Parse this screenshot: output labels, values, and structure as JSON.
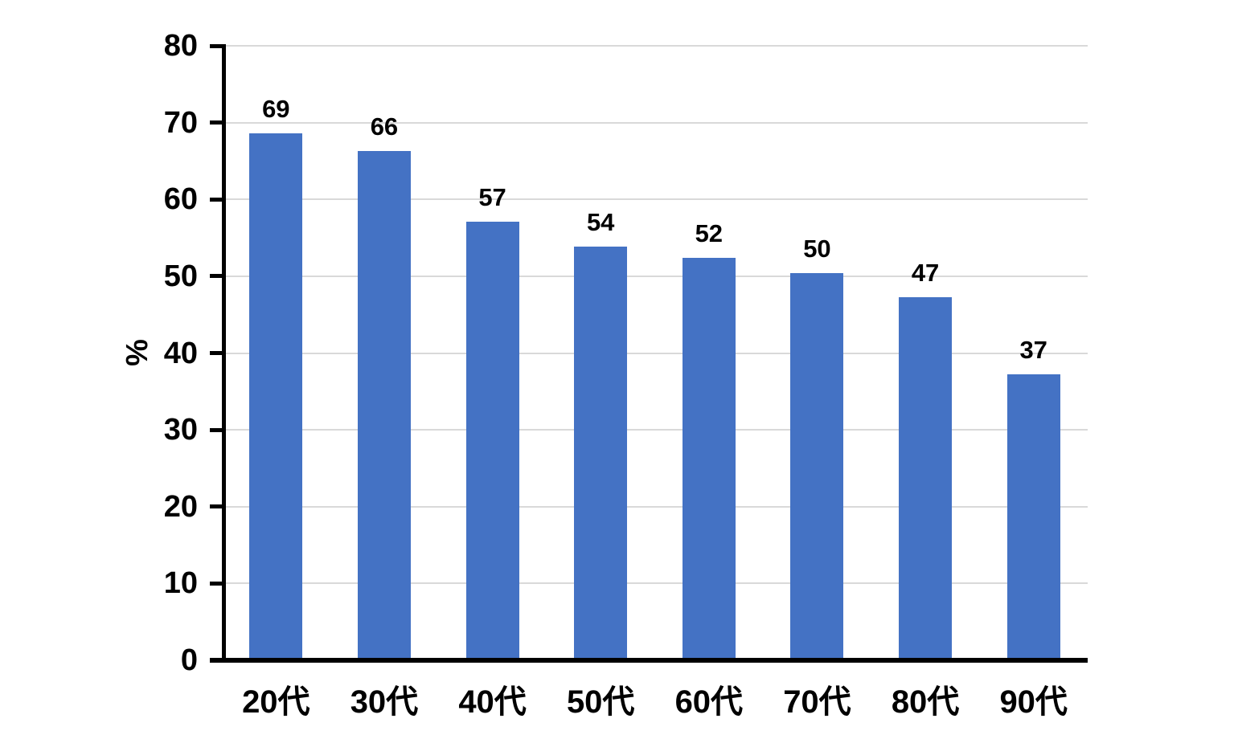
{
  "chart_data": {
    "type": "bar",
    "title": "",
    "xlabel": "",
    "ylabel": "%",
    "categories": [
      "20代",
      "30代",
      "40代",
      "50代",
      "60代",
      "70代",
      "80代",
      "90代"
    ],
    "values": [
      69,
      66,
      57,
      54,
      52,
      50,
      47,
      37
    ],
    "data_labels": [
      "69",
      "66",
      "57",
      "54",
      "52",
      "50",
      "47",
      "37"
    ],
    "bar_heights_rendered": [
      68.6,
      66.3,
      57.1,
      53.9,
      52.4,
      50.4,
      47.3,
      37.2
    ],
    "ylim": [
      0,
      80
    ],
    "y_ticks": [
      0,
      10,
      20,
      30,
      40,
      50,
      60,
      70,
      80
    ],
    "grid": "horizontal",
    "legend_position": "none",
    "colors": {
      "bar": "#4472C4",
      "gridline": "#D9D9D9",
      "axis": "#000000",
      "text": "#000000",
      "background": "#FFFFFF"
    }
  }
}
